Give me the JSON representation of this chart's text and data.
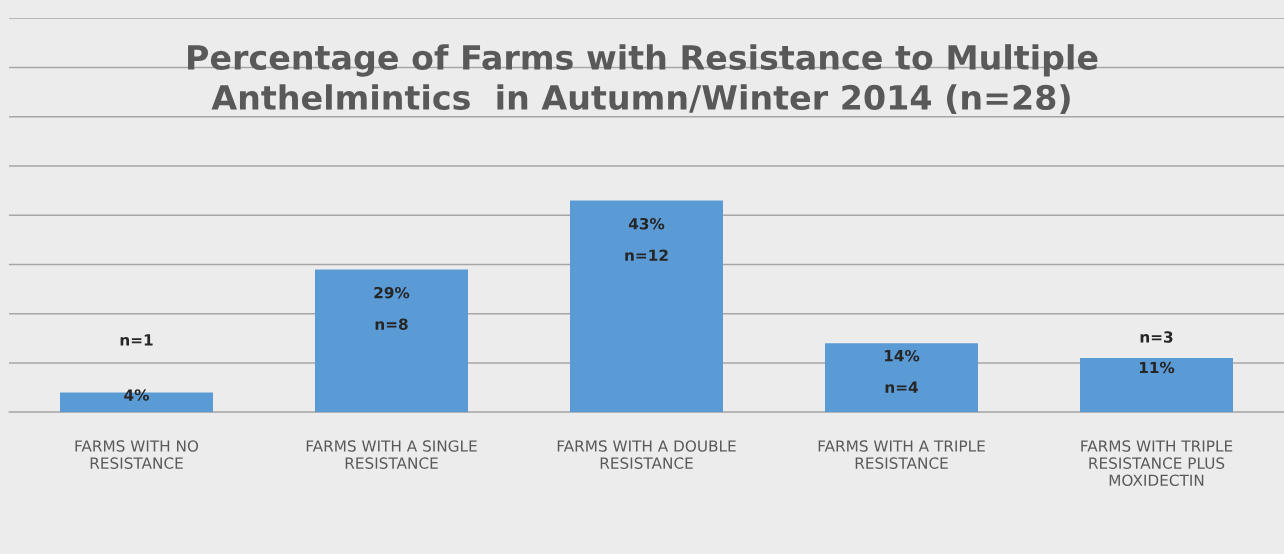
{
  "chart_data": {
    "type": "bar",
    "title": "Percentage of Farms with Resistance to Multiple\nAnthelmintics  in Autumn/Winter 2014 (n=28)",
    "categories": [
      "FARMS WITH NO\nRESISTANCE",
      "FARMS WITH A SINGLE\nRESISTANCE",
      "FARMS WITH A DOUBLE\nRESISTANCE",
      "FARMS WITH A TRIPLE\nRESISTANCE",
      "FARMS WITH TRIPLE\nRESISTANCE PLUS\nMOXIDECTIN"
    ],
    "values": [
      4,
      29,
      43,
      14,
      11
    ],
    "value_labels": [
      "4%",
      "29%",
      "43%",
      "14%",
      "11%"
    ],
    "color": "#5b9bd5",
    "relative": false,
    "ylim": [
      0,
      80
    ],
    "yticks": [
      {
        "value": 0,
        "label": null
      },
      {
        "value": 10,
        "label": null
      },
      {
        "value": 20,
        "label": null
      },
      {
        "value": 30,
        "label": null
      },
      {
        "value": 40,
        "label": null
      },
      {
        "value": 50,
        "label": null
      },
      {
        "value": 60,
        "label": null
      },
      {
        "value": 70,
        "label": null
      },
      {
        "value": 80,
        "label": null
      }
    ],
    "tick_labels": "x",
    "grid": "y",
    "annotations": [
      "n=1",
      "n=8",
      "n=12",
      "n=4",
      "n=3"
    ]
  }
}
